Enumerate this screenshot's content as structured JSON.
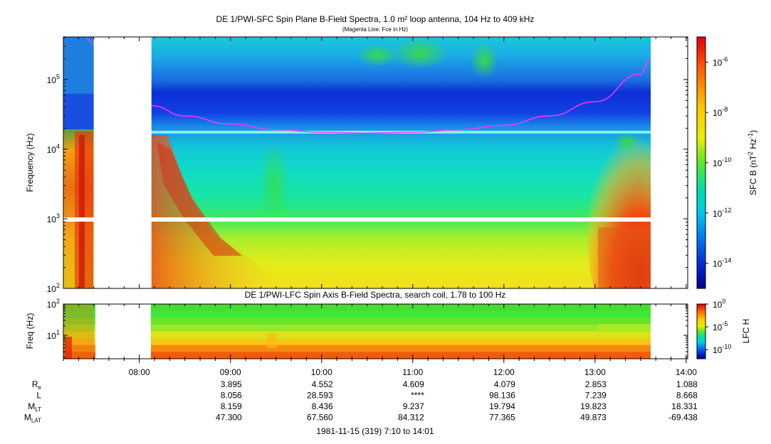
{
  "chart_data": [
    {
      "type": "heatmap",
      "title": "DE 1/PWI-SFC  Spin Plane B-Field Spectra, 1.0 m² loop antenna, 104 Hz to 409 kHz",
      "subtitle": "(Magenta Line: Fce in Hz)",
      "ylabel": "Frequency (Hz)",
      "yscale": "log",
      "ylim": [
        100,
        409000
      ],
      "y_ticks": [
        {
          "value": 100,
          "label": "10",
          "sup": "2"
        },
        {
          "value": 1000,
          "label": "10",
          "sup": "3"
        },
        {
          "value": 10000,
          "label": "10",
          "sup": "4"
        },
        {
          "value": 100000,
          "label": "10",
          "sup": "5"
        }
      ],
      "colorbar": {
        "label": "SFC B (nT",
        "label_sup": "2",
        "label_mid": " Hz",
        "label_sup2": "-1",
        "label_end": ")",
        "scale": "log",
        "range": [
          1e-15,
          1e-05
        ],
        "ticks": [
          {
            "label": "10",
            "sup": "-6"
          },
          {
            "label": "10",
            "sup": "-8"
          },
          {
            "label": "10",
            "sup": "-10"
          },
          {
            "label": "10",
            "sup": "-12"
          },
          {
            "label": "10",
            "sup": "-14"
          }
        ]
      },
      "data_gap": [
        "07:30",
        "08:08"
      ],
      "fce_line_hz": [
        {
          "t": "08:08",
          "f": 42000
        },
        {
          "t": "08:30",
          "f": 30000
        },
        {
          "t": "09:00",
          "f": 23000
        },
        {
          "t": "09:30",
          "f": 19000
        },
        {
          "t": "10:00",
          "f": 17500
        },
        {
          "t": "10:30",
          "f": 17000
        },
        {
          "t": "11:00",
          "f": 17500
        },
        {
          "t": "11:30",
          "f": 19000
        },
        {
          "t": "12:00",
          "f": 22000
        },
        {
          "t": "12:30",
          "f": 30000
        },
        {
          "t": "13:00",
          "f": 48000
        },
        {
          "t": "13:30",
          "f": 120000
        },
        {
          "t": "13:36",
          "f": 190000
        }
      ]
    },
    {
      "type": "heatmap",
      "title": "DE 1/PWI-LFC  Spin Axis B-Field Spectra, search coil, 1.78 to 100 Hz",
      "ylabel": "Freq (Hz)",
      "yscale": "log",
      "ylim": [
        1.78,
        100
      ],
      "y_ticks": [
        {
          "value": 10,
          "label": "10",
          "sup": "1"
        },
        {
          "value": 100,
          "label": "10",
          "sup": "2"
        }
      ],
      "colorbar": {
        "label": "LFC H",
        "scale": "log",
        "range": [
          1e-12,
          1
        ],
        "ticks": [
          {
            "label": "10",
            "sup": "0"
          },
          {
            "label": "10",
            "sup": "-5"
          },
          {
            "label": "10",
            "sup": "-10"
          }
        ]
      },
      "data_gap": [
        "07:30",
        "08:08"
      ]
    }
  ],
  "time_axis": {
    "range": [
      "07:10",
      "14:01"
    ],
    "tick_labels": [
      "08:00",
      "09:00",
      "10:00",
      "11:00",
      "12:00",
      "13:00",
      "14:00"
    ],
    "footer": "1981-11-15 (319) 7:10 to 14:01"
  },
  "ephemeris": {
    "rows": [
      {
        "name": "R",
        "sub": "e",
        "values": [
          "",
          "3.895",
          "4.552",
          "4.609",
          "4.079",
          "2.853",
          "1.088"
        ]
      },
      {
        "name": "L",
        "sub": "",
        "values": [
          "",
          "8.056",
          "28.593",
          "****",
          "98.136",
          "7.239",
          "8.668"
        ]
      },
      {
        "name": "M",
        "sub": "LT",
        "values": [
          "",
          "8.159",
          "8.436",
          "9.237",
          "19.794",
          "19.823",
          "18.331"
        ]
      },
      {
        "name": "M",
        "sub": "LAT",
        "values": [
          "",
          "47.300",
          "67.560",
          "84.312",
          "77.365",
          "49.873",
          "-69.438"
        ]
      }
    ]
  },
  "colors": {
    "fce_line": "#ff33ff",
    "background": "#ffffff"
  }
}
